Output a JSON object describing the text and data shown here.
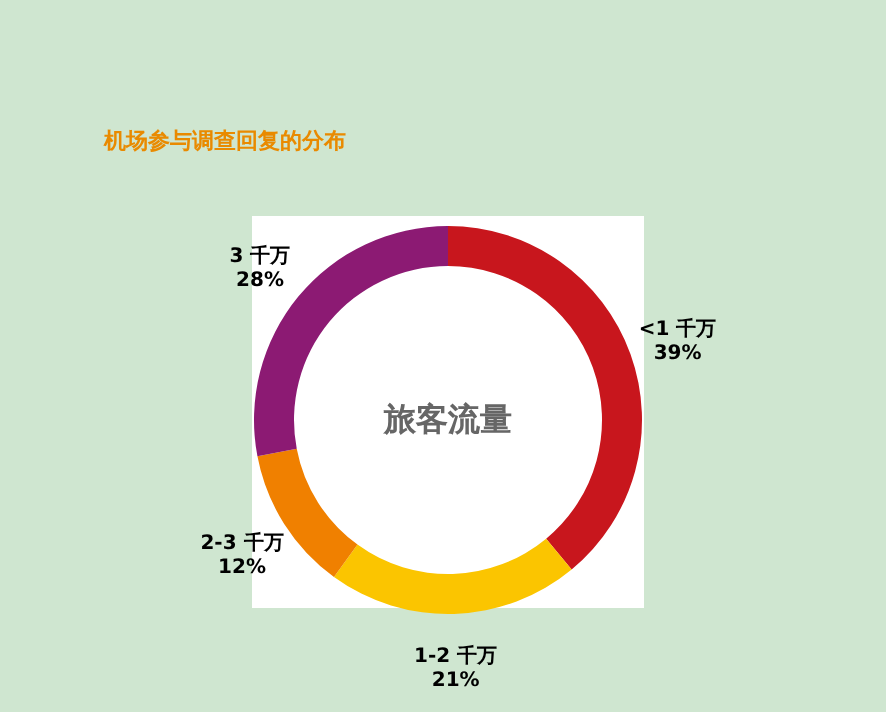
{
  "chart_data": {
    "type": "donut",
    "title": "机场参与调查回复的分布",
    "categories": [
      "<1 千万",
      "1-2 千万",
      "2-3 千万",
      "3 千万"
    ],
    "values": [
      39,
      21,
      12,
      28
    ],
    "colors": [
      "#c8161d",
      "#fbc500",
      "#f08000",
      "#8c1a73"
    ],
    "value_labels": [
      "39%",
      "21%",
      "12%",
      "28%"
    ],
    "annotations": [
      "旅客流量"
    ],
    "legend": false
  }
}
